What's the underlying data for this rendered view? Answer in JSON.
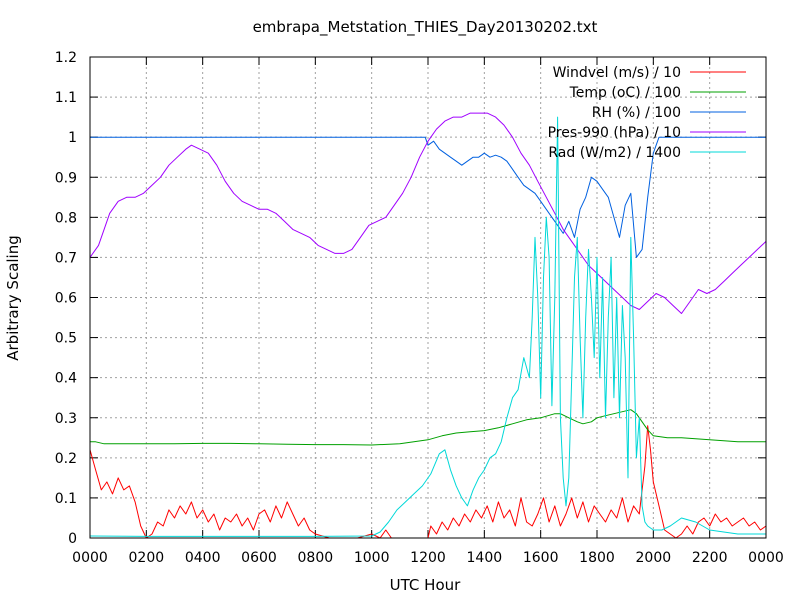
{
  "chart_data": {
    "type": "line",
    "title": "embrapa_Metstation_THIES_Day20130202.txt",
    "xlabel": "UTC Hour",
    "ylabel": "Arbitrary Scaling",
    "xlim": [
      0,
      24
    ],
    "ylim": [
      0,
      1.2
    ],
    "grid": true,
    "legend_position": "top-right",
    "x_ticks": [
      {
        "value": 0,
        "label": "0000"
      },
      {
        "value": 2,
        "label": "0200"
      },
      {
        "value": 4,
        "label": "0400"
      },
      {
        "value": 6,
        "label": "0600"
      },
      {
        "value": 8,
        "label": "0800"
      },
      {
        "value": 10,
        "label": "1000"
      },
      {
        "value": 12,
        "label": "1200"
      },
      {
        "value": 14,
        "label": "1400"
      },
      {
        "value": 16,
        "label": "1600"
      },
      {
        "value": 18,
        "label": "1800"
      },
      {
        "value": 20,
        "label": "2000"
      },
      {
        "value": 22,
        "label": "2200"
      },
      {
        "value": 24,
        "label": "0000"
      }
    ],
    "y_ticks": [
      {
        "value": 0,
        "label": "0"
      },
      {
        "value": 0.1,
        "label": "0.1"
      },
      {
        "value": 0.2,
        "label": "0.2"
      },
      {
        "value": 0.3,
        "label": "0.3"
      },
      {
        "value": 0.4,
        "label": "0.4"
      },
      {
        "value": 0.5,
        "label": "0.5"
      },
      {
        "value": 0.6,
        "label": "0.6"
      },
      {
        "value": 0.7,
        "label": "0.7"
      },
      {
        "value": 0.8,
        "label": "0.8"
      },
      {
        "value": 0.9,
        "label": "0.9"
      },
      {
        "value": 1.0,
        "label": "1"
      },
      {
        "value": 1.1,
        "label": "1.1"
      },
      {
        "value": 1.2,
        "label": "1.2"
      }
    ],
    "series": [
      {
        "name": "Windvel (m/s) / 10",
        "color": "#ff0000",
        "x": [
          0,
          0.2,
          0.4,
          0.6,
          0.8,
          1.0,
          1.2,
          1.4,
          1.6,
          1.8,
          2.0,
          2.2,
          2.4,
          2.6,
          2.8,
          3.0,
          3.2,
          3.4,
          3.6,
          3.8,
          4.0,
          4.2,
          4.4,
          4.6,
          4.8,
          5.0,
          5.2,
          5.4,
          5.6,
          5.8,
          6.0,
          6.2,
          6.4,
          6.6,
          6.8,
          7.0,
          7.2,
          7.4,
          7.6,
          7.8,
          8.0,
          8.5,
          9.0,
          9.5,
          10.0,
          10.3,
          10.5,
          10.7,
          11.0,
          11.5,
          12.0,
          12.1,
          12.3,
          12.5,
          12.7,
          12.9,
          13.1,
          13.3,
          13.5,
          13.7,
          13.9,
          14.1,
          14.3,
          14.5,
          14.7,
          14.9,
          15.1,
          15.3,
          15.5,
          15.7,
          15.9,
          16.1,
          16.3,
          16.5,
          16.7,
          16.9,
          17.1,
          17.3,
          17.5,
          17.7,
          17.9,
          18.1,
          18.3,
          18.5,
          18.7,
          18.9,
          19.1,
          19.3,
          19.5,
          19.7,
          19.8,
          19.9,
          20.0,
          20.2,
          20.4,
          20.6,
          20.8,
          21.0,
          21.2,
          21.4,
          21.6,
          21.8,
          22.0,
          22.2,
          22.4,
          22.6,
          22.8,
          23.0,
          23.2,
          23.4,
          23.6,
          23.8,
          24.0
        ],
        "values": [
          0.22,
          0.17,
          0.12,
          0.14,
          0.11,
          0.15,
          0.12,
          0.13,
          0.09,
          0.03,
          0.0,
          0.01,
          0.04,
          0.03,
          0.07,
          0.05,
          0.08,
          0.06,
          0.09,
          0.05,
          0.07,
          0.04,
          0.06,
          0.02,
          0.05,
          0.04,
          0.06,
          0.03,
          0.05,
          0.02,
          0.06,
          0.07,
          0.04,
          0.08,
          0.05,
          0.09,
          0.06,
          0.03,
          0.05,
          0.02,
          0.01,
          0.0,
          0.0,
          0.0,
          0.01,
          0.0,
          0.02,
          0.0,
          0.0,
          0.0,
          0.0,
          0.03,
          0.01,
          0.04,
          0.02,
          0.05,
          0.03,
          0.06,
          0.04,
          0.07,
          0.05,
          0.08,
          0.04,
          0.09,
          0.05,
          0.07,
          0.03,
          0.1,
          0.04,
          0.03,
          0.06,
          0.1,
          0.04,
          0.08,
          0.03,
          0.06,
          0.1,
          0.05,
          0.09,
          0.04,
          0.08,
          0.06,
          0.04,
          0.07,
          0.05,
          0.1,
          0.04,
          0.08,
          0.06,
          0.18,
          0.28,
          0.22,
          0.14,
          0.08,
          0.02,
          0.01,
          0.0,
          0.01,
          0.03,
          0.01,
          0.04,
          0.05,
          0.03,
          0.06,
          0.04,
          0.05,
          0.03,
          0.04,
          0.05,
          0.03,
          0.04,
          0.02,
          0.03
        ]
      },
      {
        "name": "Temp (oC) / 100",
        "color": "#00a000",
        "x": [
          0,
          0.2,
          0.5,
          1,
          2,
          3,
          4,
          5,
          6,
          7,
          8,
          9,
          10,
          11,
          11.5,
          12,
          12.5,
          13,
          13.5,
          14,
          14.5,
          15,
          15.5,
          16,
          16.5,
          16.7,
          17,
          17.3,
          17.5,
          17.8,
          18,
          18.3,
          18.6,
          18.9,
          19.2,
          19.4,
          19.6,
          19.8,
          20,
          20.5,
          21,
          22,
          23,
          24
        ],
        "values": [
          0.24,
          0.24,
          0.235,
          0.235,
          0.235,
          0.235,
          0.236,
          0.236,
          0.235,
          0.234,
          0.233,
          0.233,
          0.232,
          0.235,
          0.24,
          0.245,
          0.255,
          0.262,
          0.265,
          0.268,
          0.275,
          0.285,
          0.295,
          0.3,
          0.31,
          0.31,
          0.3,
          0.29,
          0.285,
          0.29,
          0.3,
          0.305,
          0.31,
          0.315,
          0.32,
          0.31,
          0.29,
          0.27,
          0.255,
          0.25,
          0.25,
          0.245,
          0.24,
          0.24
        ]
      },
      {
        "name": "RH (%) / 100",
        "color": "#0060e0",
        "x": [
          0,
          11.9,
          12.0,
          12.2,
          12.4,
          12.6,
          12.8,
          13.0,
          13.2,
          13.4,
          13.6,
          13.8,
          14.0,
          14.2,
          14.4,
          14.6,
          14.8,
          15.0,
          15.2,
          15.4,
          15.6,
          15.8,
          16.0,
          16.2,
          16.4,
          16.6,
          16.8,
          17.0,
          17.2,
          17.4,
          17.6,
          17.8,
          18.0,
          18.2,
          18.4,
          18.6,
          18.8,
          19.0,
          19.2,
          19.4,
          19.6,
          19.8,
          20.0,
          20.2,
          24
        ],
        "values": [
          1.0,
          1.0,
          0.98,
          0.99,
          0.97,
          0.96,
          0.95,
          0.94,
          0.93,
          0.94,
          0.95,
          0.95,
          0.96,
          0.95,
          0.955,
          0.95,
          0.94,
          0.92,
          0.9,
          0.88,
          0.87,
          0.86,
          0.84,
          0.82,
          0.8,
          0.78,
          0.76,
          0.79,
          0.75,
          0.82,
          0.85,
          0.9,
          0.89,
          0.87,
          0.85,
          0.8,
          0.75,
          0.83,
          0.86,
          0.7,
          0.72,
          0.85,
          0.96,
          1.0,
          1.0
        ]
      },
      {
        "name": "Pres-990 (hPa) / 10",
        "color": "#a000ff",
        "x": [
          0,
          0.3,
          0.5,
          0.7,
          1.0,
          1.3,
          1.6,
          1.9,
          2.2,
          2.5,
          2.8,
          3.1,
          3.4,
          3.6,
          3.9,
          4.2,
          4.5,
          4.8,
          5.1,
          5.4,
          5.7,
          6.0,
          6.3,
          6.6,
          6.9,
          7.2,
          7.5,
          7.8,
          8.1,
          8.4,
          8.7,
          9.0,
          9.3,
          9.6,
          9.9,
          10.2,
          10.5,
          10.8,
          11.1,
          11.4,
          11.7,
          12.0,
          12.3,
          12.6,
          12.9,
          13.2,
          13.5,
          13.8,
          14.1,
          14.4,
          14.7,
          15.0,
          15.3,
          15.6,
          15.9,
          16.2,
          16.5,
          16.8,
          17.1,
          17.4,
          17.7,
          18.0,
          18.3,
          18.6,
          18.9,
          19.2,
          19.5,
          19.8,
          20.1,
          20.4,
          20.7,
          21.0,
          21.3,
          21.6,
          21.9,
          22.2,
          22.5,
          22.8,
          23.1,
          23.4,
          23.7,
          24.0
        ],
        "values": [
          0.7,
          0.73,
          0.77,
          0.81,
          0.84,
          0.85,
          0.85,
          0.86,
          0.88,
          0.9,
          0.93,
          0.95,
          0.97,
          0.98,
          0.97,
          0.96,
          0.93,
          0.89,
          0.86,
          0.84,
          0.83,
          0.82,
          0.82,
          0.81,
          0.79,
          0.77,
          0.76,
          0.75,
          0.73,
          0.72,
          0.71,
          0.71,
          0.72,
          0.75,
          0.78,
          0.79,
          0.8,
          0.83,
          0.86,
          0.9,
          0.95,
          0.99,
          1.02,
          1.04,
          1.05,
          1.05,
          1.06,
          1.06,
          1.06,
          1.05,
          1.03,
          1.0,
          0.96,
          0.93,
          0.89,
          0.85,
          0.81,
          0.77,
          0.74,
          0.71,
          0.68,
          0.66,
          0.64,
          0.62,
          0.6,
          0.58,
          0.57,
          0.59,
          0.61,
          0.6,
          0.58,
          0.56,
          0.59,
          0.62,
          0.61,
          0.62,
          0.64,
          0.66,
          0.68,
          0.7,
          0.72,
          0.74
        ]
      },
      {
        "name": "Rad (W/m2) / 1400",
        "color": "#00d8d8",
        "x": [
          0,
          2,
          4,
          6,
          8,
          10,
          10.3,
          10.6,
          10.9,
          11.2,
          11.5,
          11.8,
          12.1,
          12.4,
          12.6,
          12.8,
          13.0,
          13.2,
          13.4,
          13.6,
          13.8,
          14.0,
          14.2,
          14.4,
          14.6,
          14.8,
          15.0,
          15.2,
          15.4,
          15.6,
          15.7,
          15.8,
          15.9,
          16.0,
          16.1,
          16.2,
          16.3,
          16.4,
          16.5,
          16.6,
          16.7,
          16.8,
          16.9,
          17.0,
          17.1,
          17.2,
          17.3,
          17.4,
          17.5,
          17.6,
          17.7,
          17.8,
          17.9,
          18.0,
          18.1,
          18.2,
          18.3,
          18.4,
          18.5,
          18.6,
          18.7,
          18.8,
          18.9,
          19.0,
          19.1,
          19.2,
          19.3,
          19.4,
          19.5,
          19.6,
          19.7,
          19.8,
          20.0,
          20.3,
          20.6,
          21.0,
          21.5,
          22.0,
          23.0,
          24.0
        ],
        "values": [
          0.005,
          0.004,
          0.004,
          0.004,
          0.004,
          0.005,
          0.015,
          0.04,
          0.07,
          0.09,
          0.11,
          0.13,
          0.16,
          0.21,
          0.22,
          0.17,
          0.13,
          0.1,
          0.08,
          0.12,
          0.15,
          0.17,
          0.2,
          0.21,
          0.24,
          0.3,
          0.35,
          0.37,
          0.45,
          0.4,
          0.55,
          0.75,
          0.6,
          0.35,
          0.65,
          0.8,
          0.7,
          0.33,
          0.6,
          1.05,
          0.3,
          0.15,
          0.08,
          0.15,
          0.4,
          0.65,
          0.75,
          0.5,
          0.3,
          0.55,
          0.72,
          0.6,
          0.45,
          0.7,
          0.4,
          0.65,
          0.3,
          0.55,
          0.7,
          0.35,
          0.6,
          0.3,
          0.58,
          0.45,
          0.15,
          0.75,
          0.5,
          0.2,
          0.3,
          0.08,
          0.04,
          0.03,
          0.02,
          0.02,
          0.03,
          0.05,
          0.04,
          0.02,
          0.01,
          0.01
        ]
      }
    ]
  }
}
